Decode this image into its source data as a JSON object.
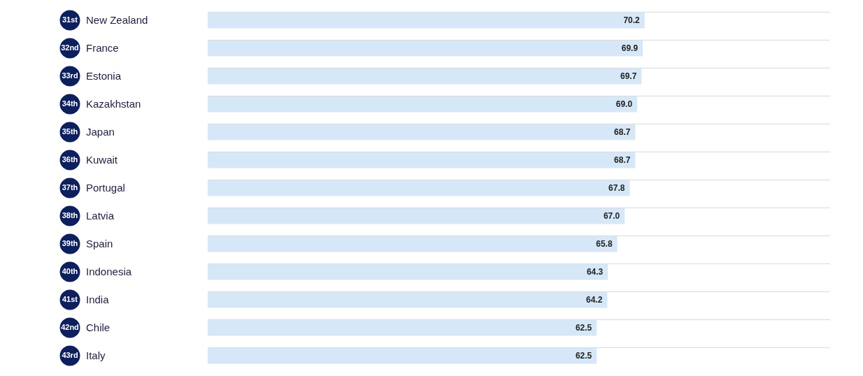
{
  "chart_data": {
    "type": "bar",
    "orientation": "horizontal",
    "categories": [
      "New Zealand",
      "France",
      "Estonia",
      "Kazakhstan",
      "Japan",
      "Kuwait",
      "Portugal",
      "Latvia",
      "Spain",
      "Indonesia",
      "India",
      "Chile",
      "Italy"
    ],
    "values": [
      70.2,
      69.9,
      69.7,
      69.0,
      68.7,
      68.7,
      67.8,
      67.0,
      65.8,
      64.3,
      64.2,
      62.5,
      62.5
    ],
    "value_labels": [
      "70.2",
      "69.9",
      "69.7",
      "69.0",
      "68.7",
      "68.7",
      "67.8",
      "67.0",
      "65.8",
      "64.3",
      "64.2",
      "62.5",
      "62.5"
    ],
    "color": "#d6e8f7",
    "xlim": [
      0,
      100
    ],
    "grid": "y",
    "tick_labels": "y",
    "data_labels": true,
    "annotations": [
      "31st",
      "32nd",
      "33rd",
      "34th",
      "35th",
      "36th",
      "37th",
      "38th",
      "39th",
      "40th",
      "41st",
      "42nd",
      "43rd"
    ]
  }
}
